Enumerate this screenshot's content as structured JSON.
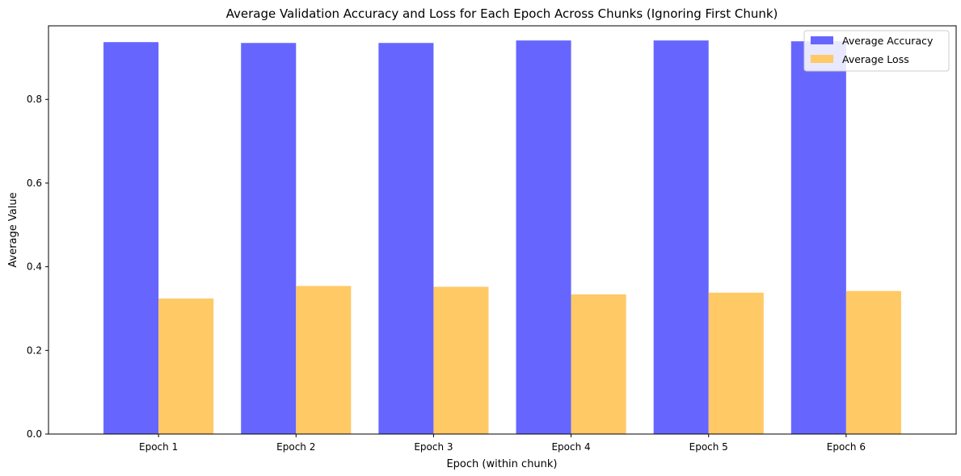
{
  "chart_data": {
    "type": "bar",
    "title": "Average Validation Accuracy and Loss for Each Epoch Across Chunks (Ignoring First Chunk)",
    "xlabel": "Epoch (within chunk)",
    "ylabel": "Average Value",
    "categories": [
      "Epoch 1",
      "Epoch 2",
      "Epoch 3",
      "Epoch 4",
      "Epoch 5",
      "Epoch 6"
    ],
    "ylim": [
      0,
      0.976
    ],
    "yticks": [
      0.0,
      0.2,
      0.4,
      0.6,
      0.8
    ],
    "ytick_labels": [
      "0.0",
      "0.2",
      "0.4",
      "0.6",
      "0.8"
    ],
    "grid": false,
    "legend_position": "top-right",
    "series": [
      {
        "name": "Average Accuracy",
        "color": "#6666ff",
        "values": [
          0.937,
          0.935,
          0.935,
          0.941,
          0.941,
          0.939
        ]
      },
      {
        "name": "Average Loss",
        "color": "#ffc966",
        "values": [
          0.324,
          0.354,
          0.352,
          0.334,
          0.338,
          0.342
        ]
      }
    ]
  }
}
